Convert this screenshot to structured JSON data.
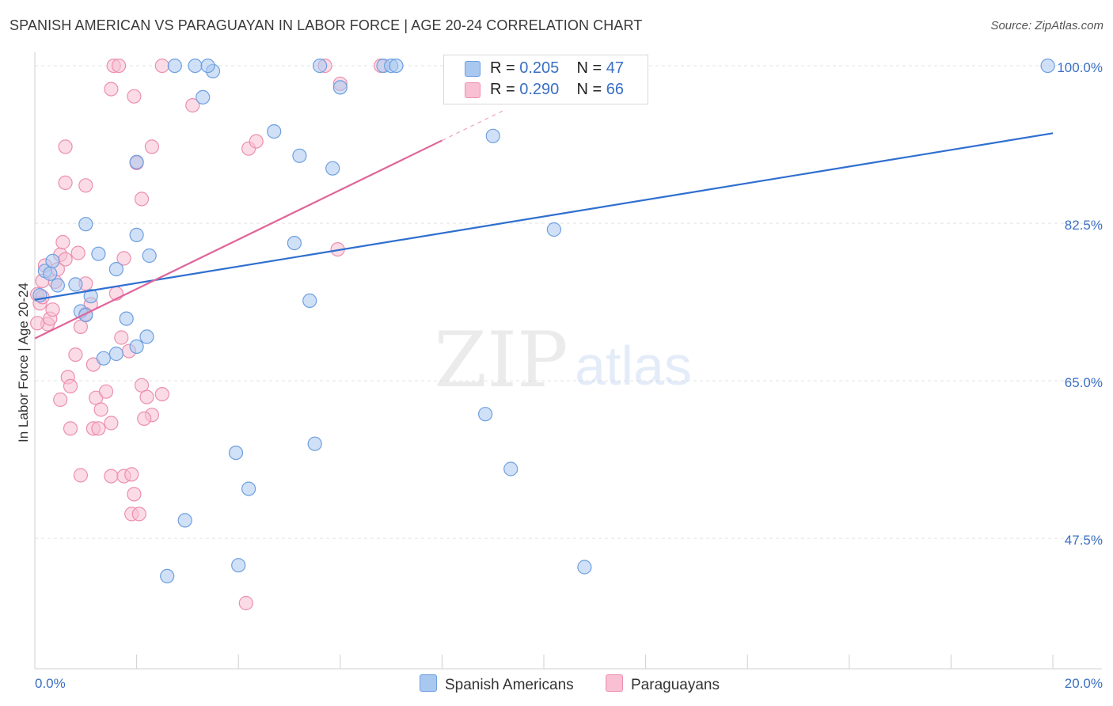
{
  "header": {
    "title": "SPANISH AMERICAN VS PARAGUAYAN IN LABOR FORCE | AGE 20-24 CORRELATION CHART",
    "source": "Source: ZipAtlas.com"
  },
  "watermark": {
    "zip": "ZIP",
    "atlas": "atlas"
  },
  "legend": {
    "r_label": "R =",
    "n_label": "N =",
    "rows": [
      {
        "r": "0.205",
        "n": "47",
        "color": "#a9c8f0",
        "stroke": "#6e9fe0"
      },
      {
        "r": "0.290",
        "n": "66",
        "color": "#f8c0d2",
        "stroke": "#ec8fae"
      }
    ]
  },
  "bottom_legend": {
    "series1": "Spanish Americans",
    "series2": "Paraguayans"
  },
  "colors": {
    "blue_fill": "#a9c8f0",
    "blue_stroke": "#6e9fe0",
    "blue_line": "#2f6fcf",
    "pink_fill": "#f8c0d2",
    "pink_stroke": "#ec8fae",
    "pink_line": "#e0659a",
    "tick_label": "#3a6fc4"
  },
  "chart_data": {
    "type": "scatter",
    "title": "SPANISH AMERICAN VS PARAGUAYAN IN LABOR FORCE | AGE 20-24 CORRELATION CHART",
    "xlabel": "",
    "ylabel": "In Labor Force | Age 20-24",
    "xlim": [
      0.0,
      20.0
    ],
    "ylim": [
      33.0,
      101.5
    ],
    "x_tick_labels": [
      "0.0%",
      "20.0%"
    ],
    "y_ticks": [
      {
        "value": 100.0,
        "label": "100.0%"
      },
      {
        "value": 82.5,
        "label": "82.5%"
      },
      {
        "value": 65.0,
        "label": "65.0%"
      },
      {
        "value": 47.5,
        "label": "47.5%"
      }
    ],
    "grid": true,
    "series": [
      {
        "name": "Spanish Americans",
        "R": 0.205,
        "N": 47,
        "trend": {
          "x": [
            0.0,
            20.0
          ],
          "y": [
            74.0,
            92.5
          ]
        },
        "points": [
          [
            0.1,
            74.5
          ],
          [
            0.2,
            77.2
          ],
          [
            0.3,
            76.9
          ],
          [
            0.45,
            75.6
          ],
          [
            0.35,
            78.3
          ],
          [
            0.8,
            75.7
          ],
          [
            0.9,
            72.7
          ],
          [
            1.0,
            72.3
          ],
          [
            1.1,
            74.4
          ],
          [
            1.0,
            82.4
          ],
          [
            1.25,
            79.1
          ],
          [
            1.6,
            77.4
          ],
          [
            1.35,
            67.5
          ],
          [
            1.6,
            68.0
          ],
          [
            1.8,
            71.9
          ],
          [
            2.0,
            68.8
          ],
          [
            2.2,
            69.9
          ],
          [
            2.0,
            81.2
          ],
          [
            2.25,
            78.9
          ],
          [
            2.0,
            89.3
          ],
          [
            2.75,
            100.0
          ],
          [
            3.15,
            100.0
          ],
          [
            3.5,
            99.4
          ],
          [
            3.3,
            96.5
          ],
          [
            4.7,
            92.7
          ],
          [
            5.2,
            90.0
          ],
          [
            5.1,
            80.3
          ],
          [
            5.4,
            73.9
          ],
          [
            5.5,
            58.0
          ],
          [
            5.85,
            88.6
          ],
          [
            5.6,
            100.0
          ],
          [
            6.0,
            97.6
          ],
          [
            6.85,
            100.0
          ],
          [
            7.0,
            100.0
          ],
          [
            3.4,
            100.0
          ],
          [
            9.0,
            92.2
          ],
          [
            8.85,
            61.3
          ],
          [
            9.35,
            55.2
          ],
          [
            10.2,
            81.8
          ],
          [
            10.8,
            44.3
          ],
          [
            3.95,
            57.0
          ],
          [
            4.2,
            53.0
          ],
          [
            2.95,
            49.5
          ],
          [
            4.0,
            44.5
          ],
          [
            2.6,
            43.3
          ],
          [
            7.1,
            100.0
          ],
          [
            19.9,
            100.0
          ]
        ]
      },
      {
        "name": "Paraguayans",
        "R": 0.29,
        "N": 66,
        "trend": {
          "x": [
            0.0,
            8.0
          ],
          "y": [
            69.7,
            91.7
          ]
        },
        "trend_dashed": {
          "x": [
            8.0,
            9.2
          ],
          "y": [
            91.7,
            95.0
          ]
        },
        "points": [
          [
            0.05,
            74.6
          ],
          [
            0.1,
            73.6
          ],
          [
            0.15,
            76.1
          ],
          [
            0.2,
            77.8
          ],
          [
            0.25,
            71.3
          ],
          [
            0.3,
            71.9
          ],
          [
            0.35,
            72.9
          ],
          [
            0.4,
            76.0
          ],
          [
            0.45,
            77.4
          ],
          [
            0.5,
            79.0
          ],
          [
            0.55,
            80.4
          ],
          [
            0.6,
            78.5
          ],
          [
            0.65,
            65.4
          ],
          [
            0.7,
            64.4
          ],
          [
            0.8,
            67.9
          ],
          [
            0.9,
            71.0
          ],
          [
            1.0,
            72.4
          ],
          [
            0.85,
            79.2
          ],
          [
            1.0,
            75.8
          ],
          [
            0.6,
            87.0
          ],
          [
            1.0,
            86.7
          ],
          [
            0.6,
            91.0
          ],
          [
            1.1,
            73.5
          ],
          [
            1.15,
            66.8
          ],
          [
            1.2,
            63.1
          ],
          [
            1.3,
            61.8
          ],
          [
            1.4,
            63.8
          ],
          [
            1.5,
            60.3
          ],
          [
            1.15,
            59.7
          ],
          [
            1.25,
            59.7
          ],
          [
            0.5,
            62.9
          ],
          [
            0.7,
            59.7
          ],
          [
            1.5,
            54.4
          ],
          [
            0.9,
            54.5
          ],
          [
            1.75,
            54.4
          ],
          [
            1.9,
            54.6
          ],
          [
            1.95,
            52.4
          ],
          [
            1.9,
            50.2
          ],
          [
            2.05,
            50.2
          ],
          [
            1.6,
            74.7
          ],
          [
            1.7,
            69.8
          ],
          [
            1.85,
            68.3
          ],
          [
            1.75,
            78.6
          ],
          [
            2.1,
            64.5
          ],
          [
            2.2,
            63.2
          ],
          [
            2.3,
            61.2
          ],
          [
            2.15,
            60.8
          ],
          [
            2.5,
            63.5
          ],
          [
            2.0,
            89.2
          ],
          [
            2.1,
            85.2
          ],
          [
            2.3,
            91.0
          ],
          [
            1.5,
            97.4
          ],
          [
            1.95,
            96.6
          ],
          [
            1.55,
            100.0
          ],
          [
            1.65,
            100.0
          ],
          [
            2.5,
            100.0
          ],
          [
            3.1,
            95.6
          ],
          [
            4.2,
            90.8
          ],
          [
            4.35,
            91.6
          ],
          [
            5.95,
            79.6
          ],
          [
            5.7,
            100.0
          ],
          [
            6.0,
            98.0
          ],
          [
            6.8,
            100.0
          ],
          [
            4.15,
            40.3
          ],
          [
            0.15,
            74.3
          ],
          [
            0.05,
            71.4
          ]
        ]
      }
    ]
  }
}
